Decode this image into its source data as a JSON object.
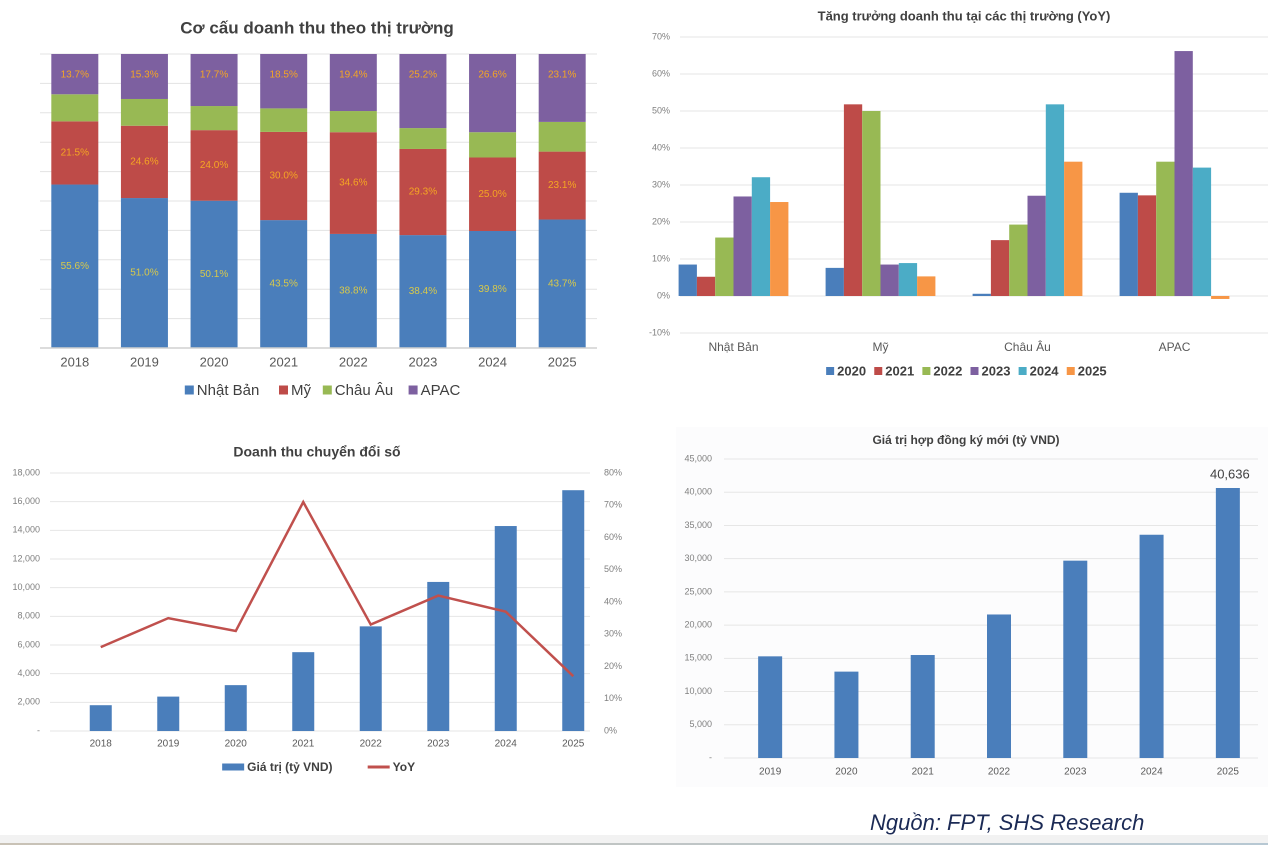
{
  "source_note": "Nguồn: FPT, SHS Research",
  "colors": {
    "nhat_ban": "#4a7ebb",
    "my": "#be4b48",
    "chau_au": "#98b954",
    "apac": "#7d60a0",
    "y2024": "#4bacc6",
    "y2025": "#f79646",
    "label_orange": "#f5a623",
    "label_yellow": "#d8c94a",
    "line": "#c0504d",
    "grid": "#e6e6e6",
    "axis_text": "#595959",
    "title": "#404040"
  },
  "chart_data": [
    {
      "id": "market-structure",
      "type": "bar",
      "stacked": true,
      "title": "Cơ cấu doanh thu theo thị trường",
      "categories": [
        "2018",
        "2019",
        "2020",
        "2021",
        "2022",
        "2023",
        "2024",
        "2025"
      ],
      "ylim": [
        0,
        100
      ],
      "grid": true,
      "legend_position": "bottom",
      "series": [
        {
          "name": "Nhật Bản",
          "color_key": "nhat_ban",
          "values": [
            55.6,
            51.0,
            50.1,
            43.5,
            38.8,
            38.4,
            39.8,
            43.7
          ],
          "labels": [
            "55.6%",
            "51.0%",
            "50.1%",
            "43.5%",
            "38.8%",
            "38.4%",
            "39.8%",
            "43.7%"
          ],
          "label_color_key": "label_yellow"
        },
        {
          "name": "Mỹ",
          "color_key": "my",
          "values": [
            21.5,
            24.6,
            24.0,
            30.0,
            34.6,
            29.3,
            25.0,
            23.1
          ],
          "labels": [
            "21.5%",
            "24.6%",
            "24.0%",
            "30.0%",
            "34.6%",
            "29.3%",
            "25.0%",
            "23.1%"
          ],
          "label_color_key": "label_orange"
        },
        {
          "name": "Châu Âu",
          "color_key": "chau_au",
          "values": [
            9.2,
            9.1,
            8.2,
            8.0,
            7.2,
            7.1,
            8.6,
            10.1
          ],
          "labels": null
        },
        {
          "name": "APAC",
          "color_key": "apac",
          "values": [
            13.7,
            15.3,
            17.7,
            18.5,
            19.4,
            25.2,
            26.6,
            23.1
          ],
          "labels": [
            "13.7%",
            "15.3%",
            "17.7%",
            "18.5%",
            "19.4%",
            "25.2%",
            "26.6%",
            "23.1%"
          ],
          "label_color_key": "label_orange"
        }
      ]
    },
    {
      "id": "market-growth-yoy",
      "type": "bar",
      "title": "Tăng trưởng doanh thu tại các thị trường (YoY)",
      "categories": [
        "Nhật Bản",
        "Mỹ",
        "Châu Âu",
        "APAC"
      ],
      "ylim": [
        -10,
        70
      ],
      "yticks": [
        -10,
        0,
        10,
        20,
        30,
        40,
        50,
        60,
        70
      ],
      "ytick_labels": [
        "-10%",
        "0%",
        "10%",
        "20%",
        "30%",
        "40%",
        "50%",
        "60%",
        "70%"
      ],
      "grid": true,
      "legend_position": "bottom",
      "series": [
        {
          "name": "2020",
          "color_key": "nhat_ban",
          "values": [
            8.5,
            7.6,
            0.6,
            27.9
          ]
        },
        {
          "name": "2021",
          "color_key": "my",
          "values": [
            5.2,
            51.8,
            15.1,
            27.2
          ]
        },
        {
          "name": "2022",
          "color_key": "chau_au",
          "values": [
            15.8,
            50.0,
            19.3,
            36.3
          ]
        },
        {
          "name": "2023",
          "color_key": "apac",
          "values": [
            26.9,
            8.5,
            27.1,
            66.2
          ]
        },
        {
          "name": "2024",
          "color_key": "y2024",
          "values": [
            32.1,
            8.9,
            51.8,
            34.7
          ]
        },
        {
          "name": "2025",
          "color_key": "y2025",
          "values": [
            25.4,
            5.3,
            36.3,
            -0.8
          ]
        }
      ]
    },
    {
      "id": "digital-transformation-revenue",
      "type": "bar",
      "combo_line": true,
      "title": "Doanh thu chuyển đổi số",
      "categories": [
        "2018",
        "2019",
        "2020",
        "2021",
        "2022",
        "2023",
        "2024",
        "2025"
      ],
      "ylim": [
        0,
        18000
      ],
      "yticks": [
        0,
        2000,
        4000,
        6000,
        8000,
        10000,
        12000,
        14000,
        16000,
        18000
      ],
      "ytick_labels": [
        "-",
        "2,000",
        "4,000",
        "6,000",
        "8,000",
        "10,000",
        "12,000",
        "14,000",
        "16,000",
        "18,000"
      ],
      "y2lim": [
        0,
        80
      ],
      "y2ticks": [
        0,
        10,
        20,
        30,
        40,
        50,
        60,
        70,
        80
      ],
      "y2tick_labels": [
        "0%",
        "10%",
        "20%",
        "30%",
        "40%",
        "50%",
        "60%",
        "70%",
        "80%"
      ],
      "grid": true,
      "legend_position": "bottom",
      "series": [
        {
          "name": "Giá trị (tỷ VND)",
          "type": "bar",
          "axis": "left",
          "color_key": "nhat_ban",
          "values": [
            1800,
            2400,
            3200,
            5500,
            7300,
            10400,
            14300,
            16800
          ]
        },
        {
          "name": "YoY",
          "type": "line",
          "axis": "right",
          "color_key": "line",
          "values": [
            26,
            35,
            31,
            71,
            33,
            42,
            37,
            17
          ]
        }
      ]
    },
    {
      "id": "new-contract-value",
      "type": "bar",
      "title": "Giá trị hợp đồng ký mới (tỷ VND)",
      "categories": [
        "2019",
        "2020",
        "2021",
        "2022",
        "2023",
        "2024",
        "2025"
      ],
      "ylim": [
        0,
        45000
      ],
      "yticks": [
        0,
        5000,
        10000,
        15000,
        20000,
        25000,
        30000,
        35000,
        40000,
        45000
      ],
      "ytick_labels": [
        "-",
        "5,000",
        "10,000",
        "15,000",
        "20,000",
        "25,000",
        "30,000",
        "35,000",
        "40,000",
        "45,000"
      ],
      "grid": true,
      "series": [
        {
          "name": "Giá trị hợp đồng ký mới",
          "color_key": "nhat_ban",
          "values": [
            15300,
            13000,
            15500,
            21600,
            29700,
            33600,
            40636
          ],
          "labels": [
            null,
            null,
            null,
            null,
            null,
            null,
            "40,636"
          ]
        }
      ]
    }
  ]
}
